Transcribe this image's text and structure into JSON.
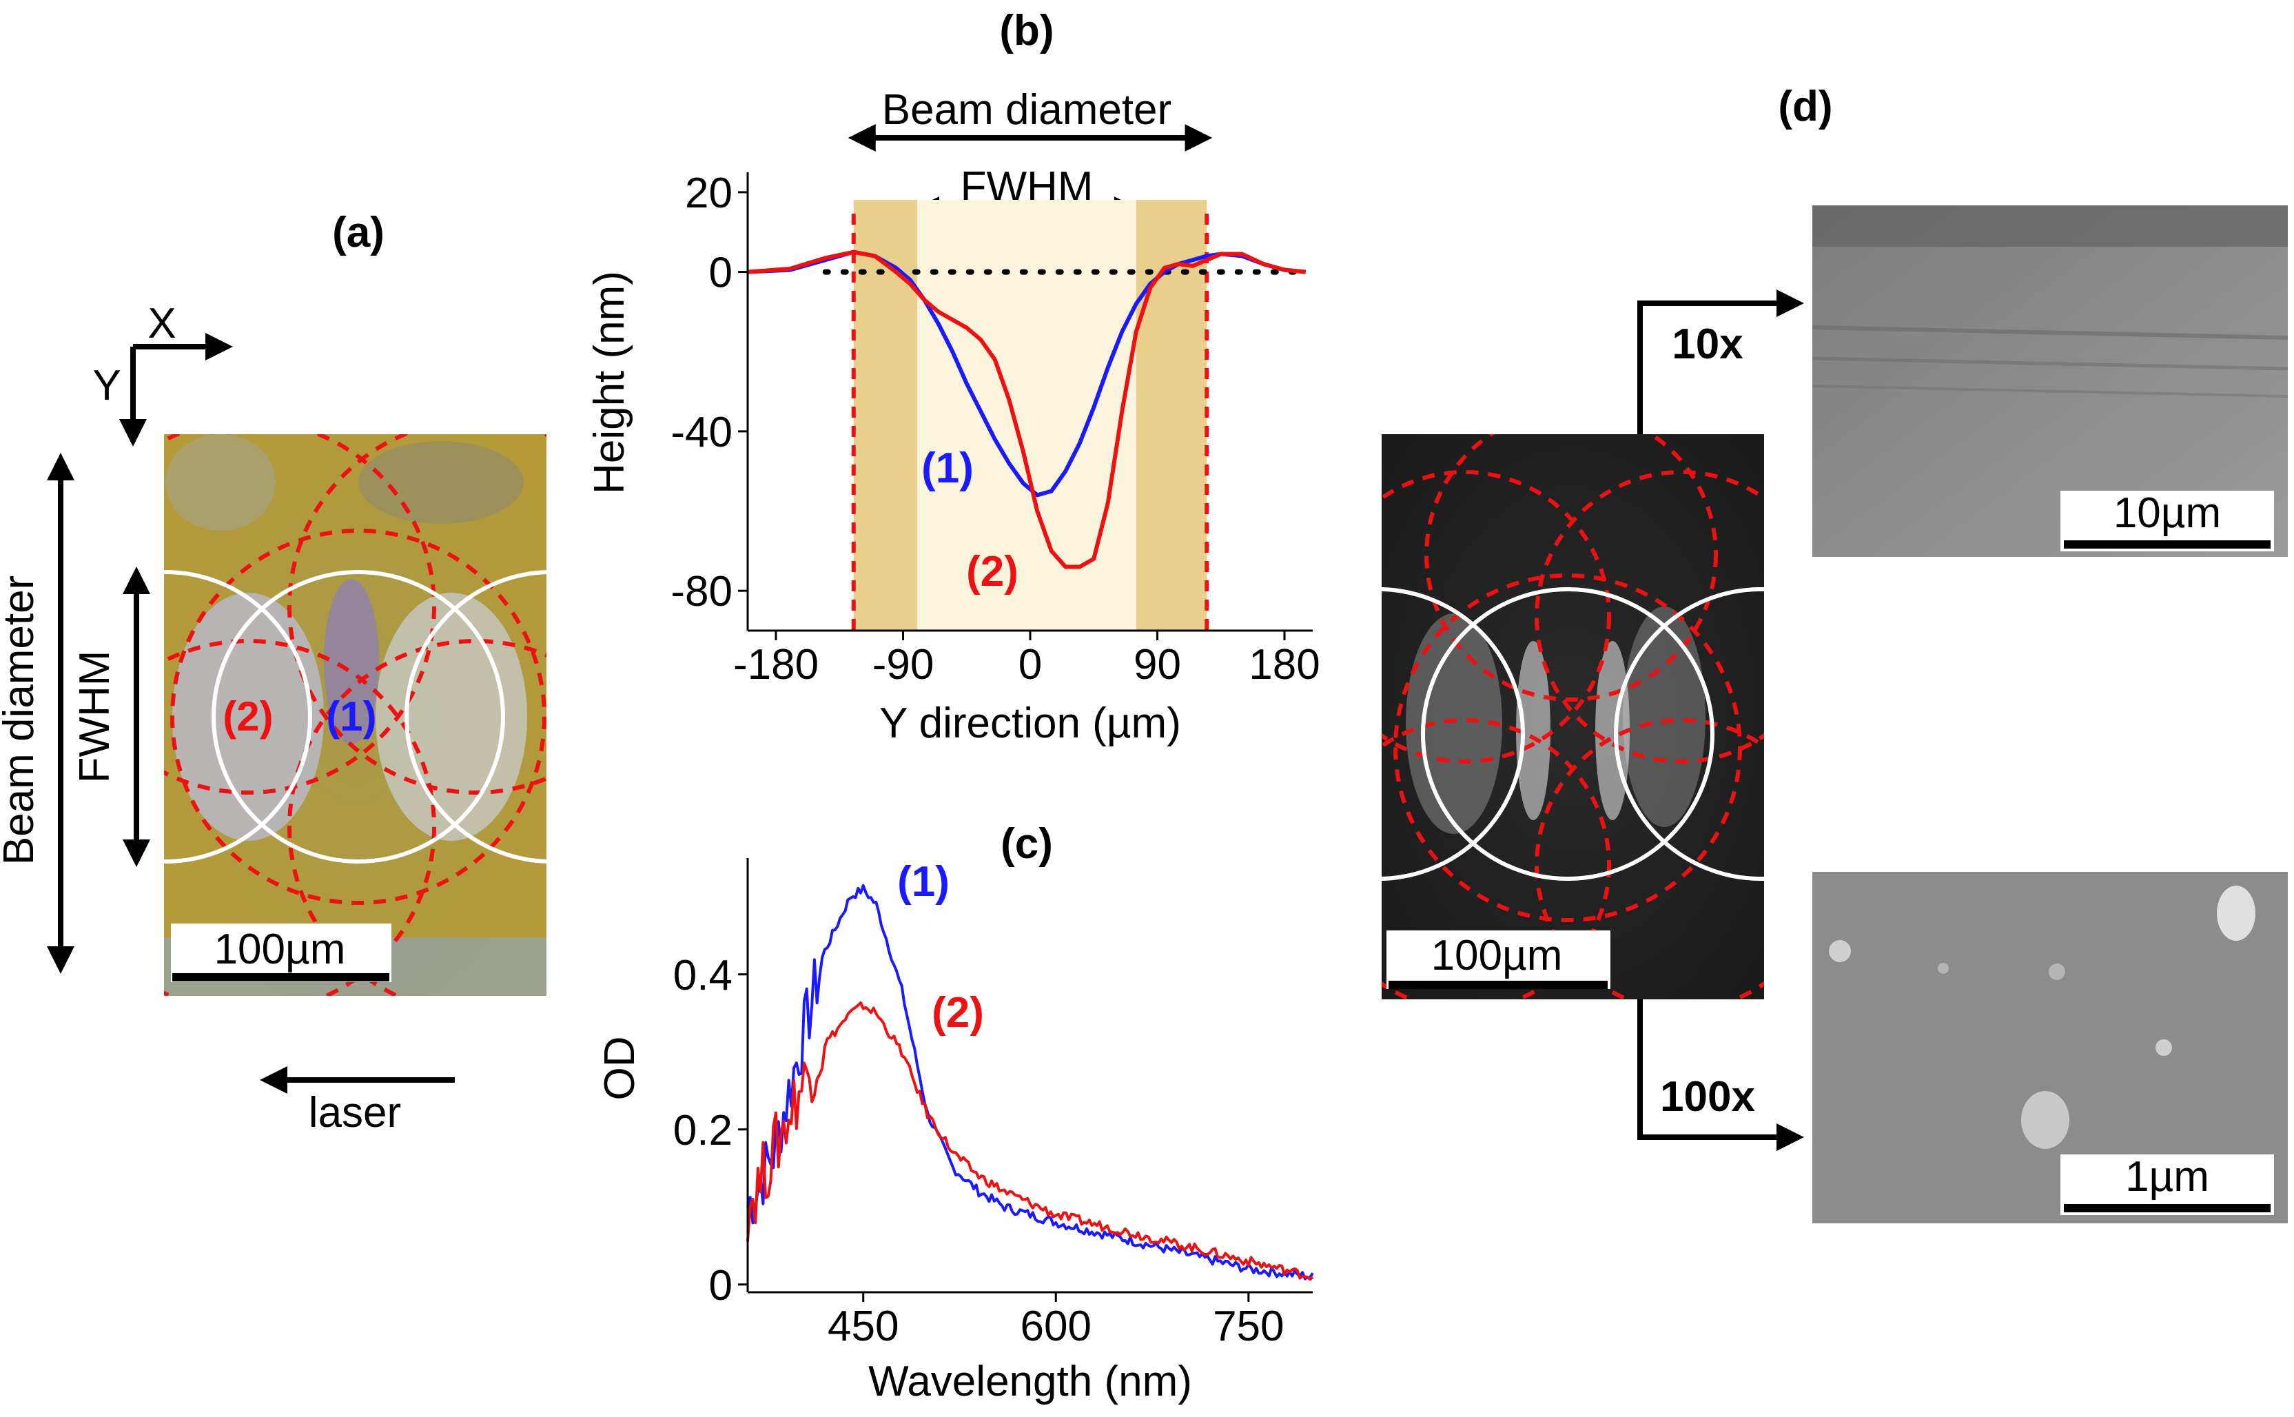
{
  "panel_a": {
    "label": "(a)",
    "axis_x": "X",
    "axis_y": "Y",
    "beam_label": "Beam diameter",
    "fwhm_label": "FWHM",
    "region1": "(1)",
    "region2": "(2)",
    "scale": "100µm",
    "laser": "laser"
  },
  "panel_d": {
    "label": "(d)",
    "scale_main": "100µm",
    "mag_10": "10x",
    "mag_100": "100x",
    "scale_10": "10µm",
    "scale_100": "1µm"
  },
  "colors": {
    "series1": "#1a1aff",
    "series2": "#ee1111",
    "outer_band": "#e8cf8c",
    "inner_band": "#fbf4dc"
  },
  "chart_data": [
    {
      "type": "line",
      "panel": "(b)",
      "title": "(b)",
      "xlabel": "Y direction (µm)",
      "ylabel": "Height (nm)",
      "xlim": [
        -200,
        200
      ],
      "ylim": [
        -90,
        25
      ],
      "xticks": [
        -180,
        -90,
        0,
        90,
        180
      ],
      "yticks": [
        20,
        0,
        -40,
        -80
      ],
      "beam_label": "Beam diameter",
      "fwhm_label": "FWHM",
      "beam_range": [
        -125,
        125
      ],
      "fwhm_range": [
        -80,
        75
      ],
      "series": [
        {
          "name": "(1)",
          "label": "(1)",
          "color": "#1a1aff",
          "x": [
            -200,
            -170,
            -145,
            -125,
            -110,
            -95,
            -85,
            -75,
            -65,
            -55,
            -45,
            -35,
            -25,
            -15,
            -5,
            5,
            15,
            25,
            35,
            45,
            55,
            65,
            75,
            85,
            95,
            105,
            115,
            125,
            135,
            150,
            165,
            180,
            195
          ],
          "y": [
            0,
            0.5,
            3,
            5,
            4,
            1,
            -2,
            -7,
            -13,
            -20,
            -28,
            -35,
            -42,
            -48,
            -53,
            -56,
            -55,
            -50,
            -43,
            -34,
            -24,
            -15,
            -8,
            -3,
            0,
            2,
            3,
            4,
            4.5,
            4,
            2,
            0.5,
            0
          ]
        },
        {
          "name": "(2)",
          "label": "(2)",
          "color": "#ee1111",
          "x": [
            -200,
            -170,
            -145,
            -125,
            -110,
            -95,
            -85,
            -75,
            -65,
            -55,
            -45,
            -35,
            -25,
            -15,
            -5,
            5,
            15,
            25,
            35,
            45,
            55,
            65,
            75,
            85,
            95,
            105,
            115,
            125,
            135,
            150,
            165,
            180,
            195
          ],
          "y": [
            0,
            0.8,
            3.5,
            5,
            4,
            0,
            -3,
            -7,
            -10,
            -12,
            -14,
            -17,
            -22,
            -32,
            -45,
            -60,
            -70,
            -74,
            -74,
            -72,
            -58,
            -35,
            -15,
            -4,
            1,
            2,
            1.5,
            3,
            4.5,
            4.5,
            2,
            0.5,
            0
          ]
        }
      ]
    },
    {
      "type": "line",
      "panel": "(c)",
      "title": "(c)",
      "xlabel": "Wavelength (nm)",
      "ylabel": "OD",
      "xlim": [
        360,
        800
      ],
      "ylim": [
        -0.01,
        0.55
      ],
      "xticks": [
        450,
        600,
        750
      ],
      "yticks": [
        0,
        0.2,
        0.4
      ],
      "ytick_labels": [
        "0",
        "0.2",
        "0.4"
      ],
      "series": [
        {
          "name": "(1)",
          "label": "(1)",
          "color": "#1a1aff",
          "x": [
            360,
            380,
            400,
            420,
            440,
            450,
            460,
            480,
            500,
            520,
            540,
            560,
            600,
            650,
            700,
            750,
            800
          ],
          "y": [
            0.1,
            0.17,
            0.3,
            0.43,
            0.5,
            0.51,
            0.49,
            0.38,
            0.22,
            0.15,
            0.12,
            0.1,
            0.08,
            0.06,
            0.04,
            0.02,
            0.01
          ]
        },
        {
          "name": "(2)",
          "label": "(2)",
          "color": "#ee1111",
          "x": [
            360,
            380,
            400,
            420,
            440,
            450,
            460,
            480,
            500,
            520,
            540,
            560,
            600,
            650,
            700,
            750,
            800
          ],
          "y": [
            0.1,
            0.17,
            0.25,
            0.31,
            0.35,
            0.36,
            0.35,
            0.3,
            0.22,
            0.17,
            0.14,
            0.12,
            0.09,
            0.07,
            0.05,
            0.03,
            0.01
          ]
        }
      ]
    }
  ]
}
